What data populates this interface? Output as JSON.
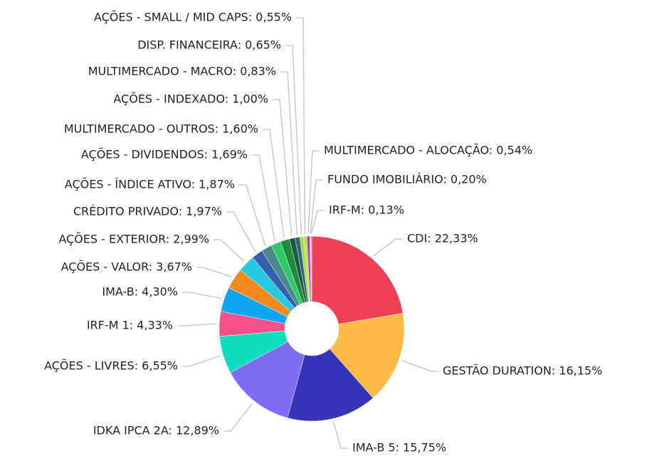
{
  "chart_data": {
    "type": "donut",
    "values": [
      22.33,
      16.15,
      15.75,
      12.89,
      6.55,
      4.33,
      4.3,
      3.67,
      2.99,
      1.97,
      1.87,
      1.69,
      1.6,
      1.0,
      0.83,
      0.65,
      0.55,
      0.54,
      0.2,
      0.13
    ],
    "value_labels": [
      "CDI: 22,33%",
      "GESTÃO DURATION: 16,15%",
      "IMA-B 5: 15,75%",
      "IDKA IPCA 2A: 12,89%",
      "AÇÕES - LIVRES: 6,55%",
      "IRF-M 1: 4,33%",
      "IMA-B: 4,30%",
      "AÇÕES - VALOR: 3,67%",
      "AÇÕES - EXTERIOR: 2,99%",
      "CRÉDITO PRIVADO: 1,97%",
      "AÇÕES - ÍNDICE ATIVO: 1,87%",
      "AÇÕES - DIVIDENDOS: 1,69%",
      "MULTIMERCADO - OUTROS: 1,60%",
      "AÇÕES - INDEXADO: 1,00%",
      "MULTIMERCADO - MACRO: 0,83%",
      "DISP. FINANCEIRA: 0,65%",
      "AÇÕES - SMALL / MID CAPS: 0,55%",
      "MULTIMERCADO - ALOCAÇÃO: 0,54%",
      "FUNDO IMOBILIÁRIO: 0,20%",
      "IRF-M: 0,13%"
    ],
    "colors": [
      "#ee4055",
      "#ffb946",
      "#3634b8",
      "#7f6cf5",
      "#10dcc0",
      "#f4508a",
      "#10a5f2",
      "#f58a1f",
      "#26c9e0",
      "#3560b0",
      "#4b8a8a",
      "#2ec86a",
      "#1e8c3c",
      "#1a5d3a",
      "#3a5f80",
      "#98e04a",
      "#c0e040",
      "#b040c0",
      "#ffa0a0",
      "#e04070"
    ]
  }
}
